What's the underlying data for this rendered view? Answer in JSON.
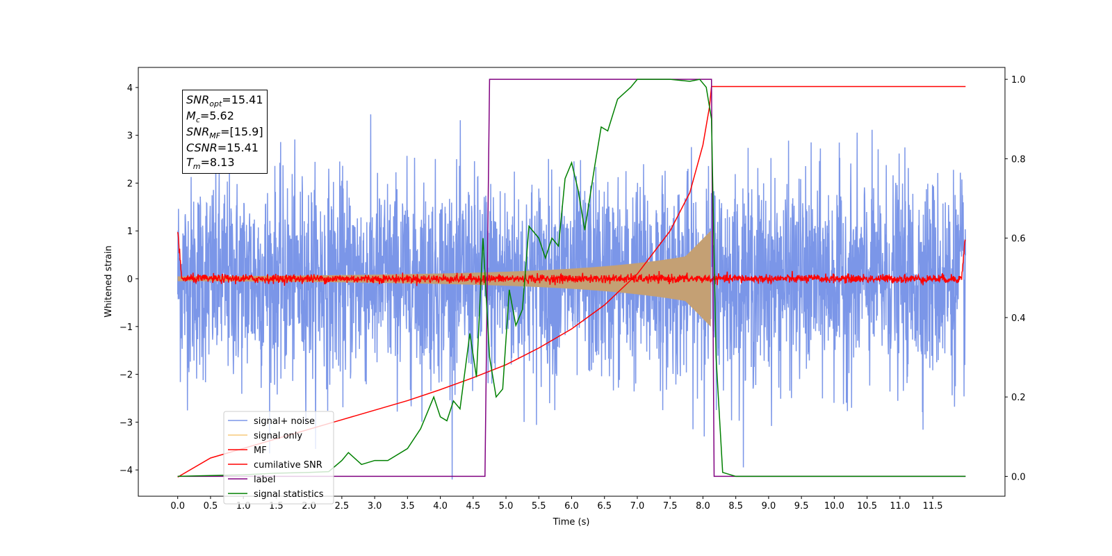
{
  "chart_data": {
    "type": "line",
    "xlabel": "Time (s)",
    "ylabel": "Whitened strain",
    "xlim": [
      -0.6,
      12.6
    ],
    "ylim": [
      -4.55,
      4.42
    ],
    "y2lim": [
      -0.05,
      1.03
    ],
    "xticks": [
      "0.0",
      "0.5",
      "1.0",
      "1.5",
      "2.0",
      "2.5",
      "3.0",
      "3.5",
      "4.0",
      "4.5",
      "5.0",
      "5.5",
      "6.0",
      "6.5",
      "7.0",
      "7.5",
      "8.0",
      "8.5",
      "9.0",
      "9.5",
      "10.0",
      "10.5",
      "11.0",
      "11.5"
    ],
    "yticks": [
      "−4",
      "−3",
      "−2",
      "−1",
      "0",
      "1",
      "2",
      "3",
      "4"
    ],
    "y2ticks": [
      "0.0",
      "0.2",
      "0.4",
      "0.6",
      "0.8",
      "1.0"
    ],
    "annotation": [
      {
        "name": "SNR",
        "sub": "opt",
        "value": "=15.41"
      },
      {
        "name": "M",
        "sub": "c",
        "value": "=5.62"
      },
      {
        "name": "SNR",
        "sub": "MF",
        "value": "=[15.9]"
      },
      {
        "name": "CSNR",
        "sub": "",
        "value": "=15.41"
      },
      {
        "name": "T",
        "sub": "m",
        "value": "=8.13"
      }
    ],
    "legend": {
      "position": "lower-left",
      "entries": [
        {
          "label": "signal+ noise",
          "color": "#7b96e8"
        },
        {
          "label": "signal only",
          "color": "#f7c97a"
        },
        {
          "label": "MF",
          "color": "#ff0000"
        },
        {
          "label": "cumilative SNR",
          "color": "#ff0000"
        },
        {
          "label": "label",
          "color": "#800080"
        },
        {
          "label": "signal statistics",
          "color": "#008000"
        }
      ]
    },
    "series": [
      {
        "name": "signal+ noise",
        "axis": "left",
        "color": "#7b96e8",
        "t_start": 0.0,
        "t_end": 12.0,
        "envelope": 2.2
      },
      {
        "name": "signal only",
        "axis": "left",
        "color": "#c4a074",
        "t_start": 0.0,
        "t_end": 8.13,
        "amplitude_start": 0.05,
        "amplitude_end": 1.05
      },
      {
        "name": "MF",
        "axis": "left",
        "color": "#ff0000",
        "t_start": 0.0,
        "t_end": 12.0,
        "edge_peak": 1.0
      },
      {
        "name": "cumilative SNR",
        "axis": "left",
        "color": "#ff0000",
        "x": [
          0.0,
          0.5,
          1.0,
          1.5,
          2.0,
          2.5,
          3.0,
          3.5,
          4.0,
          4.5,
          5.0,
          5.5,
          6.0,
          6.5,
          7.0,
          7.5,
          7.8,
          8.0,
          8.1,
          8.13,
          12.0
        ],
        "y": [
          -4.15,
          -3.75,
          -3.55,
          -3.35,
          -3.15,
          -2.95,
          -2.75,
          -2.55,
          -2.32,
          -2.07,
          -1.8,
          -1.45,
          -1.05,
          -0.55,
          0.1,
          1.0,
          1.8,
          2.8,
          3.6,
          4.02,
          4.02
        ]
      },
      {
        "name": "label",
        "axis": "right",
        "color": "#800080",
        "x": [
          0.0,
          4.68,
          4.75,
          8.13,
          8.17,
          12.0
        ],
        "y": [
          0.0,
          0.0,
          1.0,
          1.0,
          0.0,
          0.0
        ]
      },
      {
        "name": "signal statistics",
        "axis": "right",
        "color": "#008000",
        "x": [
          0.0,
          0.5,
          1.0,
          1.5,
          2.0,
          2.3,
          2.5,
          2.6,
          2.8,
          3.0,
          3.2,
          3.5,
          3.7,
          3.9,
          4.0,
          4.1,
          4.2,
          4.3,
          4.45,
          4.55,
          4.65,
          4.75,
          4.85,
          4.95,
          5.05,
          5.15,
          5.25,
          5.35,
          5.4,
          5.5,
          5.6,
          5.7,
          5.8,
          5.9,
          6.0,
          6.1,
          6.2,
          6.35,
          6.45,
          6.55,
          6.7,
          6.9,
          7.0,
          7.2,
          7.5,
          7.8,
          7.95,
          8.05,
          8.13,
          8.2,
          8.3,
          8.5,
          12.0
        ],
        "y": [
          0.0,
          0.002,
          0.004,
          0.008,
          0.01,
          0.012,
          0.04,
          0.06,
          0.03,
          0.04,
          0.04,
          0.07,
          0.12,
          0.2,
          0.15,
          0.14,
          0.19,
          0.17,
          0.36,
          0.25,
          0.6,
          0.3,
          0.2,
          0.22,
          0.47,
          0.38,
          0.42,
          0.63,
          0.62,
          0.6,
          0.55,
          0.6,
          0.58,
          0.75,
          0.79,
          0.72,
          0.62,
          0.78,
          0.88,
          0.87,
          0.95,
          0.98,
          1.0,
          1.0,
          1.0,
          0.995,
          1.0,
          0.98,
          0.9,
          0.3,
          0.01,
          0.0,
          0.0
        ]
      }
    ]
  }
}
